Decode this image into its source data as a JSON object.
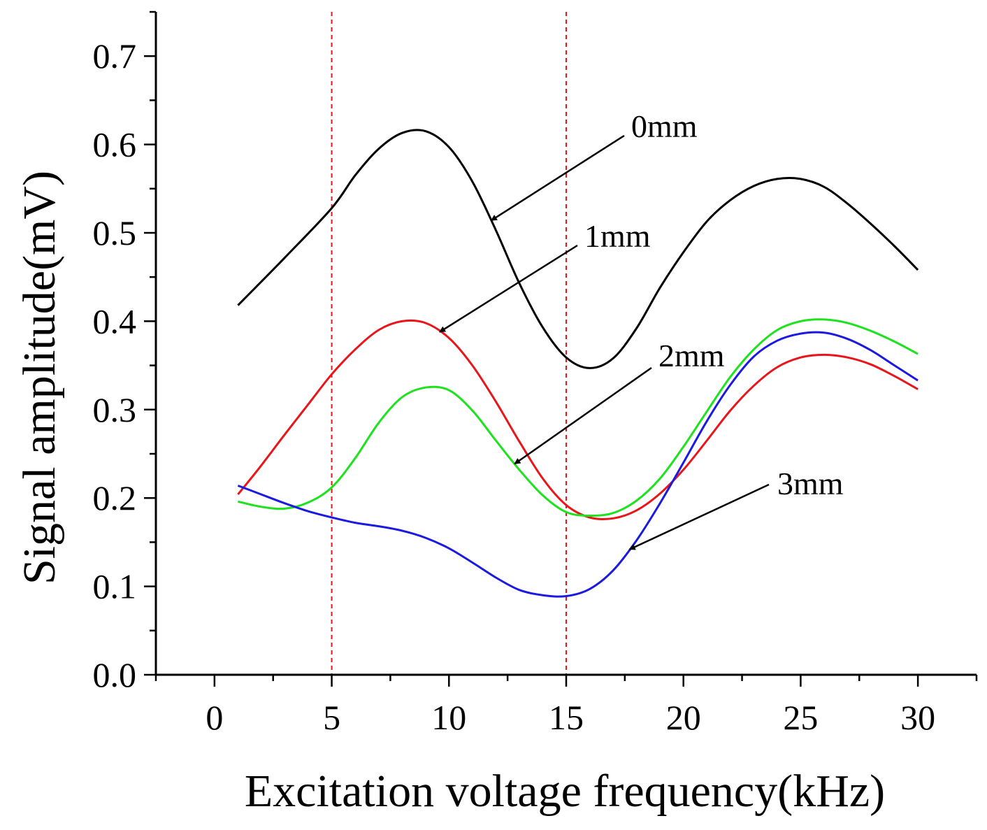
{
  "chart_data": {
    "type": "line",
    "title": "",
    "xlabel": "Excitation voltage frequency(kHz)",
    "ylabel": "Signal amplitude(mV)",
    "xlim": [
      -2.5,
      32.5
    ],
    "ylim": [
      0.0,
      0.75
    ],
    "x_ticks": [
      "0",
      "5",
      "10",
      "15",
      "20",
      "25",
      "30"
    ],
    "y_ticks": [
      "0.0",
      "0.1",
      "0.2",
      "0.3",
      "0.4",
      "0.5",
      "0.6",
      "0.7"
    ],
    "reference_lines": {
      "x": [
        5,
        15
      ],
      "color": "#e8161b",
      "style": "dashed"
    },
    "series": [
      {
        "name": "0mm",
        "color": "#000000",
        "x": [
          1,
          3,
          5,
          6,
          7,
          8,
          9,
          10,
          11,
          12,
          13,
          14,
          15,
          16,
          17,
          18,
          19,
          20,
          21,
          22,
          23,
          24,
          25,
          26,
          27,
          28,
          29,
          30
        ],
        "y": [
          0.418,
          0.472,
          0.528,
          0.565,
          0.595,
          0.613,
          0.615,
          0.597,
          0.558,
          0.503,
          0.443,
          0.393,
          0.359,
          0.347,
          0.358,
          0.392,
          0.438,
          0.478,
          0.513,
          0.537,
          0.553,
          0.561,
          0.561,
          0.552,
          0.533,
          0.51,
          0.485,
          0.458
        ]
      },
      {
        "name": "1mm",
        "color": "#e8161b",
        "x": [
          1,
          2,
          3,
          4,
          5,
          6,
          7,
          8,
          9,
          10,
          11,
          12,
          13,
          14,
          15,
          16,
          17,
          18,
          19,
          20,
          21,
          22,
          23,
          24,
          25,
          26,
          27,
          28,
          29,
          30
        ],
        "y": [
          0.204,
          0.237,
          0.272,
          0.306,
          0.34,
          0.368,
          0.39,
          0.4,
          0.398,
          0.381,
          0.35,
          0.309,
          0.264,
          0.222,
          0.192,
          0.178,
          0.177,
          0.186,
          0.205,
          0.232,
          0.265,
          0.299,
          0.327,
          0.348,
          0.359,
          0.362,
          0.359,
          0.351,
          0.338,
          0.323
        ]
      },
      {
        "name": "2mm",
        "color": "#1ee21e",
        "x": [
          1,
          2,
          3,
          4,
          5,
          6,
          7,
          8,
          9,
          10,
          11,
          12,
          13,
          14,
          15,
          16,
          17,
          18,
          19,
          20,
          21,
          22,
          23,
          24,
          25,
          26,
          27,
          28,
          29,
          30
        ],
        "y": [
          0.196,
          0.19,
          0.188,
          0.195,
          0.212,
          0.245,
          0.285,
          0.314,
          0.325,
          0.322,
          0.299,
          0.265,
          0.232,
          0.203,
          0.184,
          0.18,
          0.183,
          0.197,
          0.222,
          0.258,
          0.298,
          0.337,
          0.368,
          0.39,
          0.4,
          0.402,
          0.398,
          0.389,
          0.377,
          0.363
        ]
      },
      {
        "name": "3mm",
        "color": "#1a1ae0",
        "x": [
          1,
          2,
          3,
          4,
          5,
          6,
          7,
          8,
          9,
          10,
          11,
          12,
          13,
          14,
          15,
          16,
          17,
          18,
          19,
          20,
          21,
          22,
          23,
          24,
          25,
          26,
          27,
          28,
          29,
          30
        ],
        "y": [
          0.214,
          0.204,
          0.194,
          0.185,
          0.178,
          0.172,
          0.168,
          0.163,
          0.155,
          0.143,
          0.127,
          0.11,
          0.096,
          0.09,
          0.089,
          0.097,
          0.118,
          0.152,
          0.194,
          0.24,
          0.287,
          0.328,
          0.36,
          0.378,
          0.386,
          0.387,
          0.38,
          0.367,
          0.35,
          0.333
        ]
      }
    ],
    "annotations": [
      {
        "text": "0mm",
        "series": "0mm",
        "at_x": 11.8
      },
      {
        "text": "1mm",
        "series": "1mm",
        "at_x": 9.6
      },
      {
        "text": "2mm",
        "series": "2mm",
        "at_x": 12.8
      },
      {
        "text": "3mm",
        "series": "3mm",
        "at_x": 17.7
      }
    ]
  }
}
